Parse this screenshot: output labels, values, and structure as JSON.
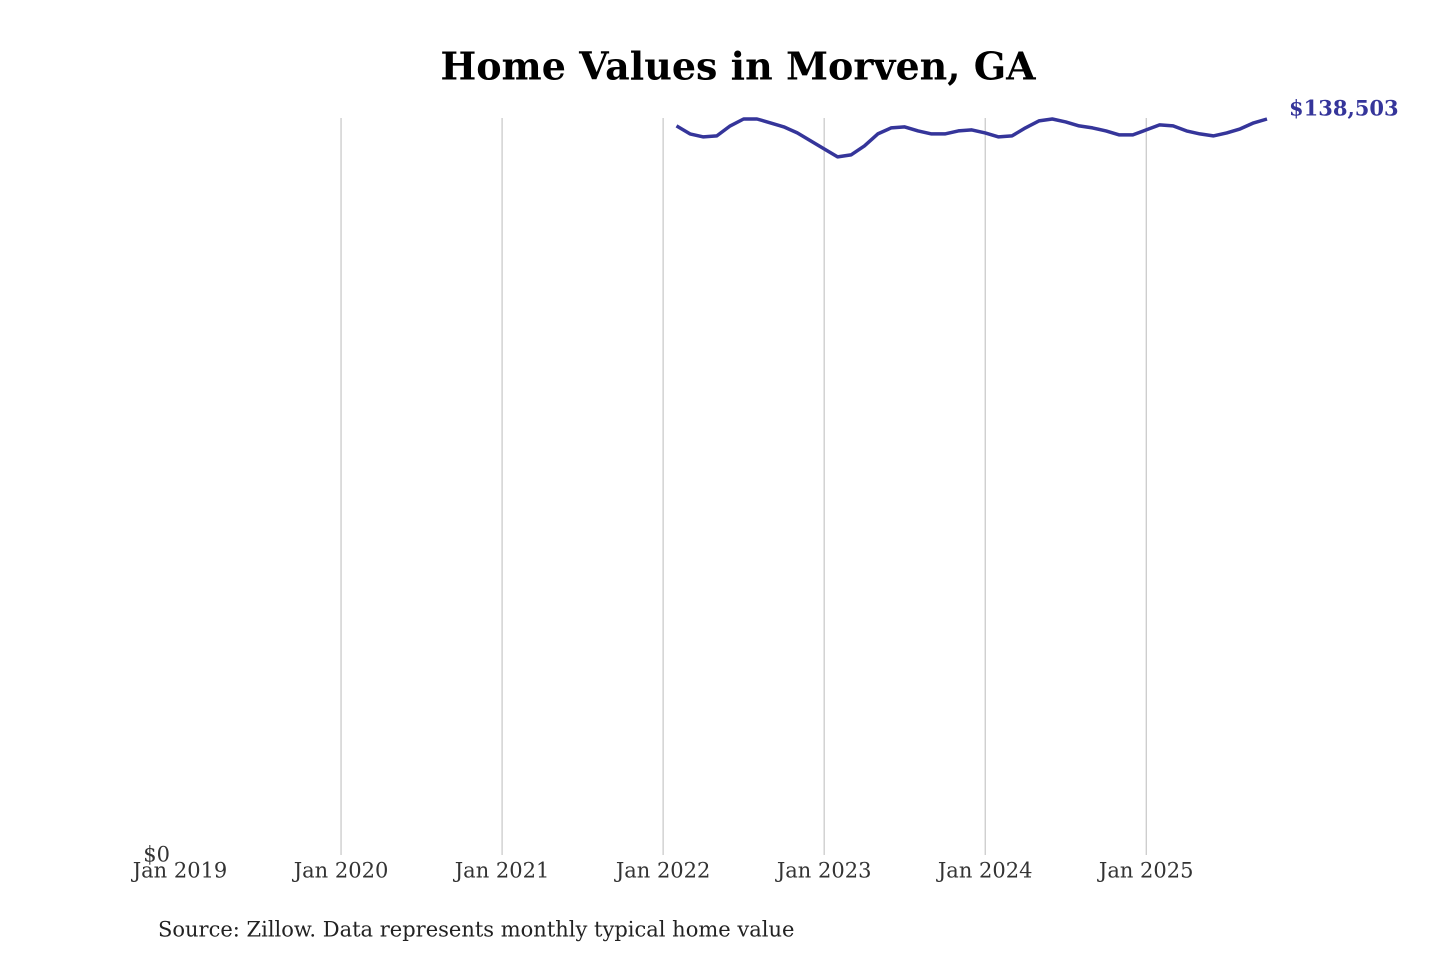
{
  "chart_data": {
    "type": "line",
    "title": "Home Values in Morven, GA",
    "source": "Source: Zillow. Data represents monthly typical home value",
    "x": [
      "2022-02",
      "2022-03",
      "2022-04",
      "2022-05",
      "2022-06",
      "2022-07",
      "2022-08",
      "2022-09",
      "2022-10",
      "2022-11",
      "2022-12",
      "2023-01",
      "2023-02",
      "2023-03",
      "2023-04",
      "2023-05",
      "2023-06",
      "2023-07",
      "2023-08",
      "2023-09",
      "2023-10",
      "2023-11",
      "2023-12",
      "2024-01",
      "2024-02",
      "2024-03",
      "2024-04",
      "2024-05",
      "2024-06",
      "2024-07",
      "2024-08",
      "2024-09",
      "2024-10",
      "2024-11",
      "2024-12",
      "2025-01",
      "2025-02",
      "2025-03",
      "2025-04",
      "2025-05",
      "2025-06",
      "2025-07",
      "2025-08",
      "2025-09",
      "2025-10"
    ],
    "series": [
      {
        "name": "Morven, GA",
        "color": "#35359a",
        "values": [
          137200,
          135690,
          135130,
          135320,
          137200,
          138500,
          138500,
          137760,
          137010,
          135880,
          134370,
          132870,
          131360,
          131740,
          133430,
          135690,
          136820,
          137010,
          136260,
          135690,
          135690,
          136260,
          136450,
          135880,
          135130,
          135320,
          136820,
          138140,
          138500,
          137950,
          137200,
          136820,
          136260,
          135500,
          135500,
          136450,
          137390,
          137200,
          136260,
          135690,
          135320,
          135880,
          136630,
          137760,
          138503
        ],
        "value_labels": [
          null,
          null,
          null,
          null,
          null,
          null,
          null,
          null,
          null,
          null,
          null,
          null,
          null,
          null,
          null,
          null,
          null,
          null,
          null,
          null,
          null,
          null,
          null,
          null,
          null,
          null,
          null,
          null,
          null,
          null,
          null,
          null,
          null,
          null,
          null,
          null,
          null,
          null,
          null,
          null,
          null,
          null,
          null,
          null,
          "$138,503"
        ]
      }
    ],
    "xlim": [
      "2019-01",
      "2025-10"
    ],
    "xticks": [
      {
        "value": "2019-01",
        "label": "Jan 2019"
      },
      {
        "value": "2020-01",
        "label": "Jan 2020"
      },
      {
        "value": "2021-01",
        "label": "Jan 2021"
      },
      {
        "value": "2022-01",
        "label": "Jan 2022"
      },
      {
        "value": "2023-01",
        "label": "Jan 2023"
      },
      {
        "value": "2024-01",
        "label": "Jan 2024"
      },
      {
        "value": "2025-01",
        "label": "Jan 2025"
      }
    ],
    "ylim": [
      0,
      140000
    ],
    "yticks": [
      {
        "value": 0,
        "label": "$0"
      }
    ],
    "grid": true
  }
}
